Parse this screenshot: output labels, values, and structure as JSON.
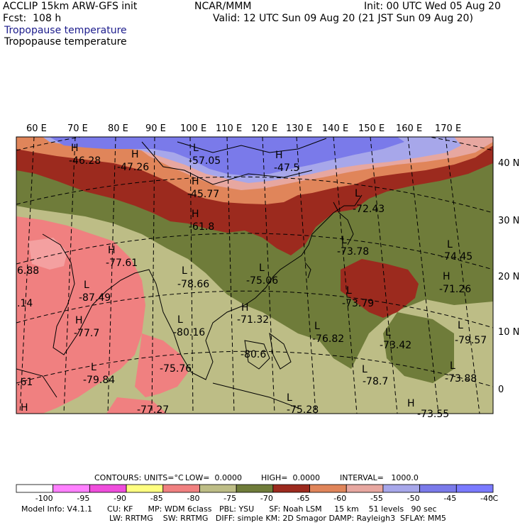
{
  "header": {
    "left_line1": "ACCLIP 15km ARW-GFS init",
    "left_line2": "Fcst:  108 h",
    "center": "NCAR/MMM",
    "init": "Init: 00 UTC Wed 05 Aug 20",
    "valid": "Valid: 12 UTC Sun 09 Aug 20 (21 JST Sun 09 Aug 20)",
    "field_blue": "Tropopause temperature",
    "field_black": "Tropopause temperature"
  },
  "colors": {
    "lavender": "#a7a7ea",
    "blue": "#7a7aea",
    "pink": "#e7a7a0",
    "orange": "#e0855a",
    "red": "#9c2a1e",
    "olive_dark": "#6f7c3a",
    "olive_light": "#bdbd86",
    "salmon": "#f08080",
    "title_blue": "#1c1c8c"
  },
  "top_lon_labels": [
    "60 E",
    "70 E",
    "80 E",
    "90 E",
    "100 E",
    "110 E",
    "120 E",
    "130 E",
    "140 E",
    "150 E",
    "160 E",
    "170 E"
  ],
  "right_lat_labels": [
    "40 N",
    "30 N",
    "20 N",
    "10 N",
    "0"
  ],
  "map_labels": {
    "H": "H",
    "L": "L",
    "values": [
      "-46.28",
      "-47.26",
      "-57.05",
      "-47.5",
      "-45.77",
      "-61.8",
      "-72.43",
      "-73.78",
      "-74.45",
      "-77.61",
      "-78.66",
      "-75.06",
      "-71.26",
      "-87.49",
      "-73.79",
      "-71.32",
      "-77.7",
      "-80.16",
      "-76.82",
      "-73.42",
      "-79.57",
      "-80.6",
      "-75.76",
      "-79.84",
      "-78.7",
      "-73.88",
      "-75.28",
      "-77.27",
      "-73.55",
      ".61",
      ".14",
      "6.88"
    ]
  },
  "contours": {
    "label": "CONTOURS:",
    "units": "UNITS=°C",
    "low": "LOW=  0.0000",
    "high": "HIGH=  0.0000",
    "interval": "INTERVAL=   1000.0"
  },
  "colorbar": {
    "ticks": [
      "-100",
      "-95",
      "-90",
      "-85",
      "-80",
      "-75",
      "-70",
      "-65",
      "-60",
      "-55",
      "-50",
      "-45",
      "-40"
    ],
    "unit": "°C",
    "swatches": [
      "#ffffff",
      "#ff80ff",
      "#ef4ddc",
      "#ffff80",
      "#f08080",
      "#bdbd86",
      "#6f7c3a",
      "#9c2a1e",
      "#e0855a",
      "#e7a7a0",
      "#a7a7ea",
      "#7a7aea",
      "#7a7aff"
    ]
  },
  "footer": {
    "line1": "Model Info: V4.1.1      CU: KF      MP: WDM 6class   PBL: YSU      SF: Noah LSM     15 km    51 levels   90 sec",
    "line2": "LW: RRTMG    SW: RRTMG   DIFF: simple KM: 2D Smagor DAMP: Rayleigh3  SFLAY: MM5"
  }
}
